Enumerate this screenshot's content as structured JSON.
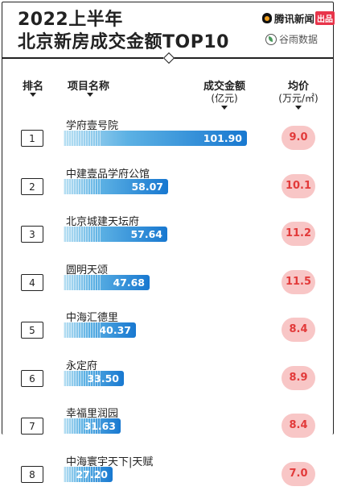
{
  "header": {
    "title_line1": "2022上半年",
    "title_line2": "北京新房成交金额TOP10",
    "brand_name": "腾讯新闻",
    "brand_badge": "出品",
    "data_source": "谷雨数据"
  },
  "columns": {
    "rank": "排名",
    "name": "项目名称",
    "amount": "成交金额",
    "amount_unit": "(亿元)",
    "price": "均价",
    "price_unit": "(万元/㎡)"
  },
  "chart_data": {
    "type": "bar",
    "title": "2022上半年 北京新房成交金额TOP10",
    "ranks": [
      "1",
      "2",
      "3",
      "4",
      "5",
      "6",
      "7",
      "8"
    ],
    "categories": [
      "学府壹号院",
      "中建壹品学府公馆",
      "北京城建天坛府",
      "圆明天颂",
      "中海汇德里",
      "永定府",
      "幸福里润园",
      "中海寰宇天下|天赋"
    ],
    "series": [
      {
        "name": "成交金额",
        "values": [
          101.9,
          58.07,
          57.64,
          47.68,
          40.37,
          33.5,
          31.63,
          27.2
        ],
        "labels": [
          "101.90",
          "58.07",
          "57.64",
          "47.68",
          "40.37",
          "33.50",
          "31.63",
          "27.20"
        ]
      },
      {
        "name": "均价",
        "values": [
          9.0,
          10.1,
          11.2,
          11.5,
          8.4,
          8.9,
          8.4,
          7.0
        ],
        "labels": [
          "9.0",
          "10.1",
          "11.2",
          "11.5",
          "8.4",
          "8.9",
          "8.4",
          "7.0"
        ]
      }
    ],
    "xlim": [
      0,
      101.9
    ],
    "bar_color": "#1878d0",
    "price_color": "#e23a3a",
    "price_bg": "#f8c6c6"
  }
}
